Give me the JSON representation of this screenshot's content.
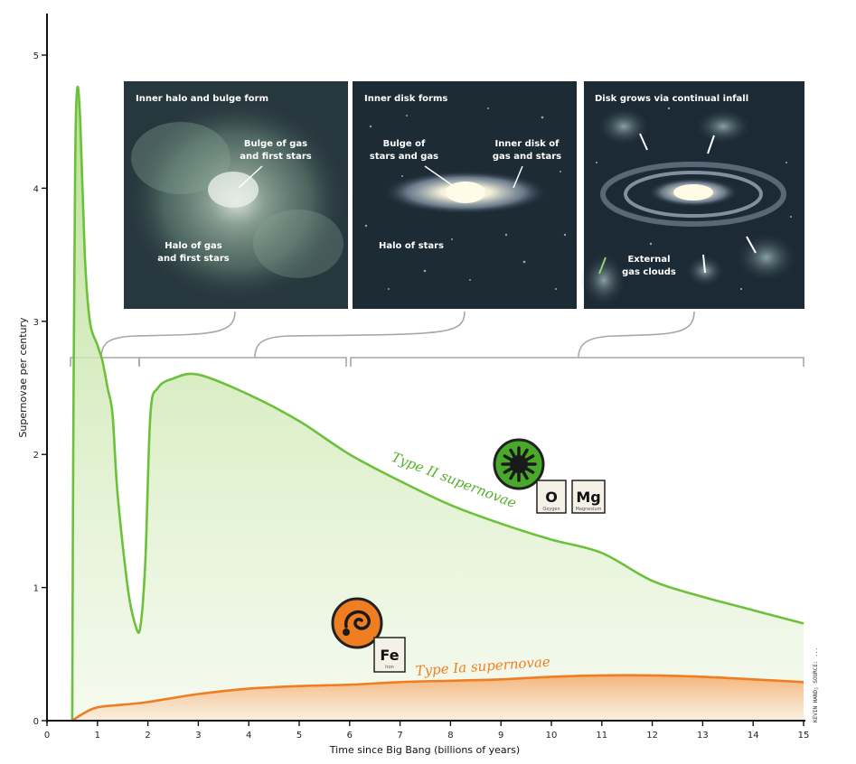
{
  "chart_data": {
    "type": "area",
    "title": "",
    "xlabel": "Time since Big Bang (billions of years)",
    "ylabel": "Supernovae per century",
    "xlim": [
      0,
      15
    ],
    "ylim": [
      0,
      5
    ],
    "x_ticks": [
      0,
      1,
      2,
      3,
      4,
      5,
      6,
      7,
      8,
      9,
      10,
      11,
      12,
      13,
      14,
      15
    ],
    "y_ticks": [
      0,
      1,
      2,
      3,
      4,
      5
    ],
    "grid": false,
    "legend": "none",
    "series": [
      {
        "name": "Type II supernovae",
        "color": "#6cc13a",
        "points": [
          [
            0.5,
            0.0
          ],
          [
            0.52,
            2.0
          ],
          [
            0.56,
            4.2
          ],
          [
            0.6,
            4.75
          ],
          [
            0.66,
            4.5
          ],
          [
            0.75,
            3.5
          ],
          [
            0.85,
            3.0
          ],
          [
            1.0,
            2.82
          ],
          [
            1.1,
            2.7
          ],
          [
            1.2,
            2.5
          ],
          [
            1.3,
            2.3
          ],
          [
            1.4,
            1.7
          ],
          [
            1.6,
            1.0
          ],
          [
            1.75,
            0.72
          ],
          [
            1.85,
            0.7
          ],
          [
            1.95,
            1.2
          ],
          [
            2.05,
            2.3
          ],
          [
            2.2,
            2.5
          ],
          [
            2.5,
            2.57
          ],
          [
            3.0,
            2.6
          ],
          [
            4.0,
            2.45
          ],
          [
            5.0,
            2.25
          ],
          [
            6.0,
            2.0
          ],
          [
            7.0,
            1.8
          ],
          [
            8.0,
            1.62
          ],
          [
            9.0,
            1.48
          ],
          [
            10.0,
            1.36
          ],
          [
            11.0,
            1.26
          ],
          [
            12.0,
            1.05
          ],
          [
            13.0,
            0.93
          ],
          [
            14.0,
            0.83
          ],
          [
            15.0,
            0.73
          ]
        ]
      },
      {
        "name": "Type Ia supernovae",
        "color": "#ef7d22",
        "points": [
          [
            0.5,
            0.0
          ],
          [
            0.75,
            0.06
          ],
          [
            1.0,
            0.1
          ],
          [
            1.5,
            0.12
          ],
          [
            2.0,
            0.14
          ],
          [
            3.0,
            0.2
          ],
          [
            4.0,
            0.24
          ],
          [
            5.0,
            0.26
          ],
          [
            6.0,
            0.27
          ],
          [
            7.0,
            0.29
          ],
          [
            8.0,
            0.3
          ],
          [
            9.0,
            0.31
          ],
          [
            10.0,
            0.33
          ],
          [
            11.0,
            0.34
          ],
          [
            12.0,
            0.34
          ],
          [
            13.0,
            0.33
          ],
          [
            14.0,
            0.31
          ],
          [
            15.0,
            0.29
          ]
        ]
      }
    ],
    "annotations": {
      "type2_label": "Type II supernovae",
      "type1a_label": "Type Ia supernovae"
    }
  },
  "panels": [
    {
      "title": "Inner halo and bulge form",
      "notes": [
        "Bulge of gas",
        "and first stars",
        "Halo of gas",
        "and first stars"
      ],
      "bg": "#27373e"
    },
    {
      "title": "Inner disk forms",
      "notes": [
        "Bulge of",
        "stars and gas",
        "Inner disk of",
        "gas and stars",
        "Halo of stars"
      ],
      "bg": "#1d2b35"
    },
    {
      "title": "Disk grows via continual infall",
      "notes": [
        "External",
        "gas clouds"
      ],
      "bg": "#1c2a35"
    }
  ],
  "elements": {
    "type2": [
      "O",
      "Mg"
    ],
    "type1a": [
      "Fe"
    ],
    "type2_sub": [
      "Oxygen",
      "Magnesium"
    ],
    "type1a_sub": [
      "Iron"
    ]
  },
  "credit": "KEVIN HAND; SOURCE: ..."
}
